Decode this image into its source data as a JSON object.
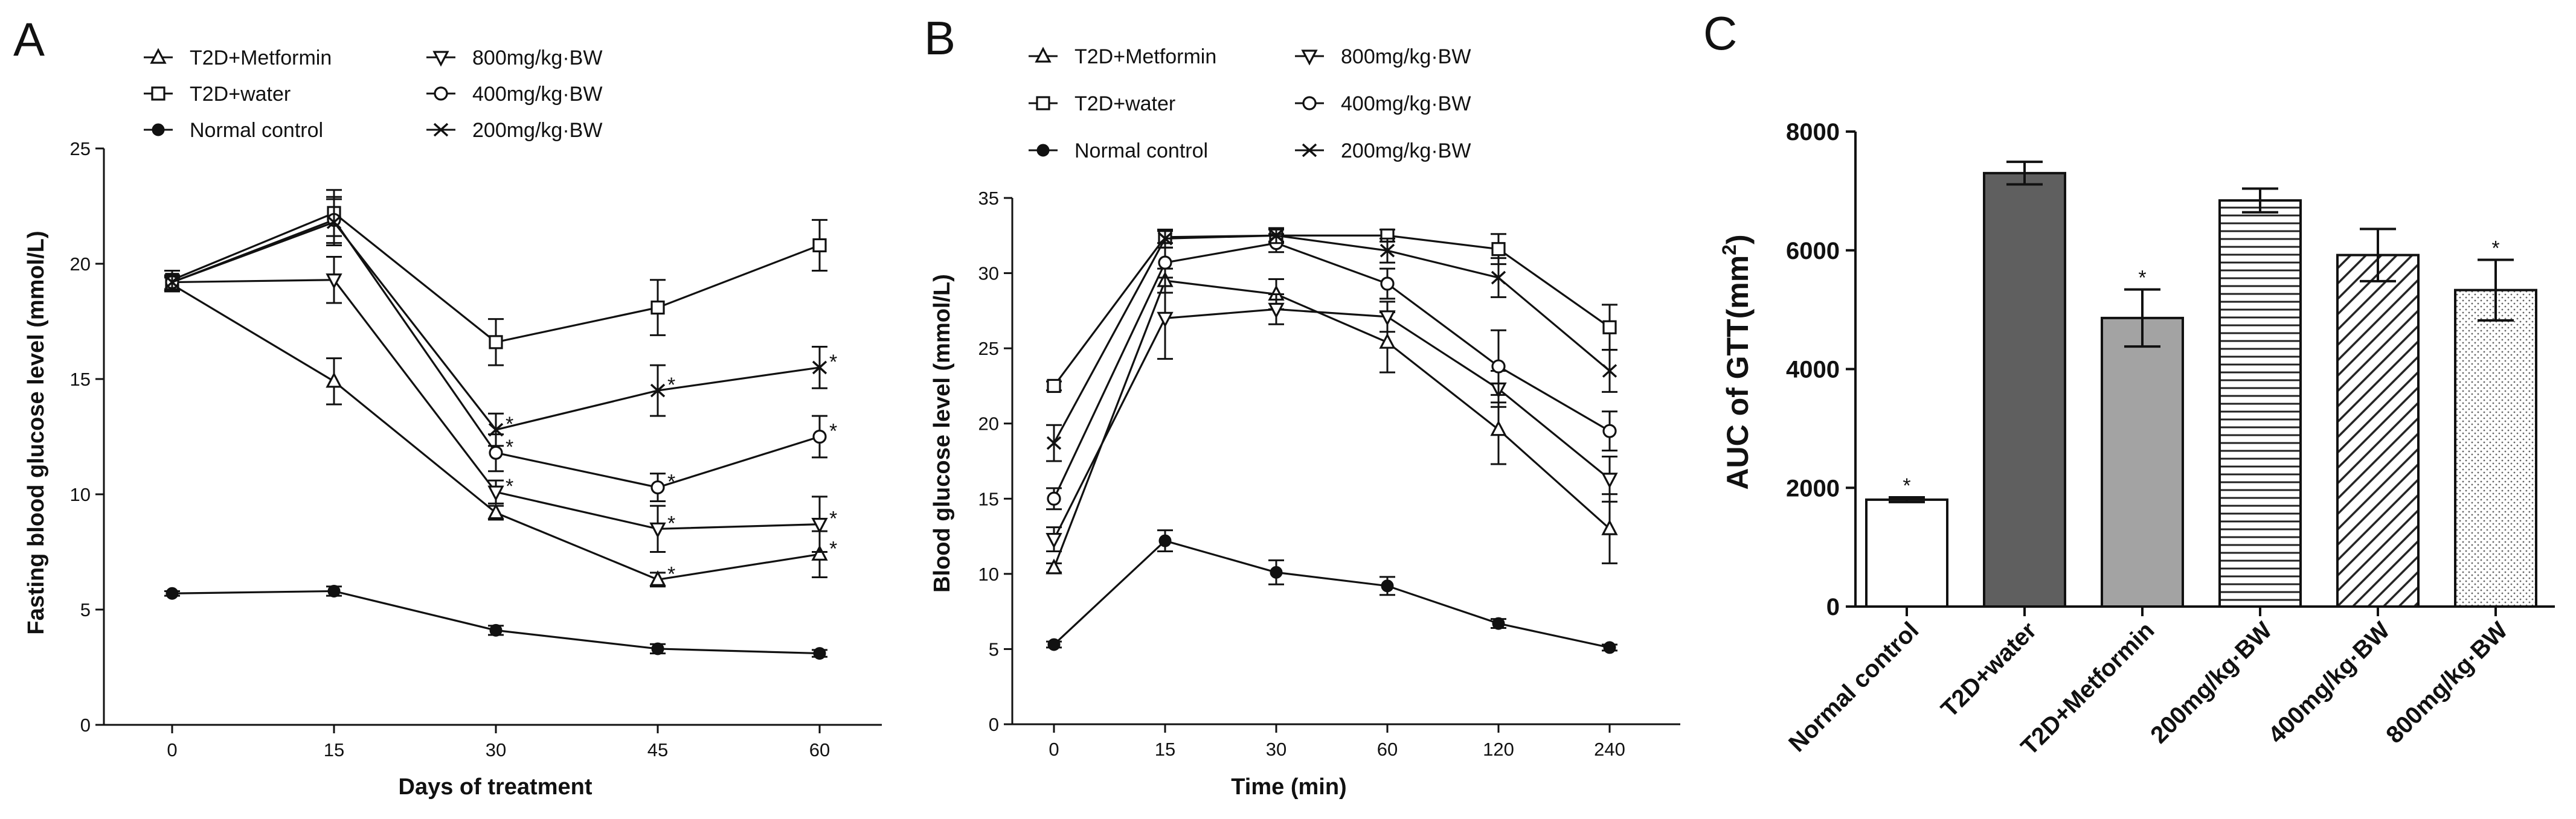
{
  "chart_data": [
    {
      "panel": "A",
      "type": "line",
      "xlabel": "Days of treatment",
      "ylabel": "Fasting blood glucose level (mmol/L)",
      "categories": [
        "0",
        "15",
        "30",
        "45",
        "60"
      ],
      "ylim": [
        0,
        25
      ],
      "yticks": [
        "0",
        "5",
        "10",
        "15",
        "20",
        "25"
      ],
      "legend": [
        {
          "name": "T2D+Metformin",
          "marker": "triangle-up"
        },
        {
          "name": "T2D+water",
          "marker": "square"
        },
        {
          "name": "Normal control",
          "marker": "filled-circle"
        },
        {
          "name": "800mg/kg·BW",
          "marker": "triangle-down"
        },
        {
          "name": "400mg/kg·BW",
          "marker": "circle"
        },
        {
          "name": "200mg/kg·BW",
          "marker": "cross"
        }
      ],
      "series": [
        {
          "name": "T2D+Metformin",
          "values": [
            19.1,
            14.9,
            9.2,
            6.3,
            7.4
          ],
          "errors": [
            0.3,
            1.0,
            0.3,
            0.3,
            1.0
          ],
          "stars": [
            false,
            false,
            false,
            true,
            true
          ]
        },
        {
          "name": "T2D+water",
          "values": [
            19.3,
            22.2,
            16.6,
            18.1,
            20.8
          ],
          "errors": [
            0.4,
            1.0,
            1.0,
            1.2,
            1.1
          ],
          "stars": [
            false,
            false,
            false,
            false,
            false
          ]
        },
        {
          "name": "Normal control",
          "values": [
            5.7,
            5.8,
            4.1,
            3.3,
            3.1
          ],
          "errors": [
            0.1,
            0.2,
            0.2,
            0.2,
            0.15
          ],
          "stars": [
            false,
            false,
            false,
            false,
            false
          ]
        },
        {
          "name": "800mg/kg·BW",
          "values": [
            19.2,
            19.3,
            10.1,
            8.5,
            8.7
          ],
          "errors": [
            0.3,
            1.0,
            0.5,
            1.0,
            1.2
          ],
          "stars": [
            false,
            false,
            true,
            true,
            true
          ]
        },
        {
          "name": "400mg/kg·BW",
          "values": [
            19.2,
            21.9,
            11.8,
            10.3,
            12.5
          ],
          "errors": [
            0.3,
            1.0,
            0.8,
            0.6,
            0.9
          ],
          "stars": [
            false,
            false,
            true,
            true,
            true
          ]
        },
        {
          "name": "200mg/kg·BW",
          "values": [
            19.2,
            21.8,
            12.8,
            14.5,
            15.5
          ],
          "errors": [
            0.3,
            1.0,
            0.7,
            1.1,
            0.9
          ],
          "stars": [
            false,
            false,
            true,
            true,
            true
          ]
        }
      ]
    },
    {
      "panel": "B",
      "type": "line",
      "xlabel": "Time (min)",
      "ylabel": "Blood glucose level (mmol/L)",
      "categories": [
        "0",
        "15",
        "30",
        "60",
        "120",
        "240"
      ],
      "ylim": [
        0,
        35
      ],
      "yticks": [
        "0",
        "5",
        "10",
        "15",
        "20",
        "25",
        "30",
        "35"
      ],
      "legend": [
        {
          "name": "T2D+Metformin",
          "marker": "triangle-up"
        },
        {
          "name": "T2D+water",
          "marker": "square"
        },
        {
          "name": "Normal control",
          "marker": "filled-circle"
        },
        {
          "name": "800mg/kg·BW",
          "marker": "triangle-down"
        },
        {
          "name": "400mg/kg·BW",
          "marker": "circle"
        },
        {
          "name": "200mg/kg·BW",
          "marker": "cross"
        }
      ],
      "series": [
        {
          "name": "T2D+Metformin",
          "values": [
            10.4,
            29.5,
            28.6,
            25.4,
            19.6,
            13.0
          ],
          "errors": [
            0.3,
            0.8,
            1.0,
            2.0,
            2.3,
            2.3
          ]
        },
        {
          "name": "T2D+water",
          "values": [
            22.5,
            32.4,
            32.5,
            32.5,
            31.6,
            26.4
          ],
          "errors": [
            0.3,
            0.4,
            0.4,
            0.4,
            1.0,
            1.5
          ]
        },
        {
          "name": "Normal control",
          "values": [
            5.3,
            12.2,
            10.1,
            9.2,
            6.7,
            5.1
          ],
          "errors": [
            0.2,
            0.7,
            0.8,
            0.6,
            0.3,
            0.2
          ]
        },
        {
          "name": "800mg/kg·BW",
          "values": [
            12.3,
            27.0,
            27.6,
            27.1,
            22.3,
            16.3
          ],
          "errors": [
            0.8,
            2.7,
            1.0,
            1.0,
            1.2,
            1.5
          ]
        },
        {
          "name": "400mg/kg·BW",
          "values": [
            15.0,
            30.7,
            32.0,
            29.3,
            23.8,
            19.5
          ],
          "errors": [
            0.7,
            1.0,
            0.6,
            1.0,
            2.4,
            1.3
          ]
        },
        {
          "name": "200mg/kg·BW",
          "values": [
            18.7,
            32.3,
            32.5,
            31.5,
            29.7,
            23.5
          ],
          "errors": [
            1.2,
            0.6,
            0.5,
            0.8,
            1.3,
            1.4
          ]
        }
      ]
    },
    {
      "panel": "C",
      "type": "bar",
      "ylabel_main": "AUC of GTT(mm",
      "ylabel_sup": "2",
      "ylabel_close": ")",
      "categories": [
        "Normal control",
        "T2D+water",
        "T2D+Metformin",
        "200mg/kg·BW",
        "400mg/kg·BW",
        "800mg/kg·BW"
      ],
      "values": [
        1800,
        7300,
        4860,
        6840,
        5920,
        5330
      ],
      "errors": [
        40,
        190,
        480,
        200,
        440,
        510
      ],
      "stars": [
        true,
        false,
        true,
        false,
        false,
        true
      ],
      "fills": [
        "none",
        "#5f5f5f",
        "#a3a3a3",
        "hlines",
        "diag",
        "dots"
      ],
      "ylim": [
        0,
        8000
      ],
      "yticks": [
        "0",
        "2000",
        "4000",
        "6000",
        "8000"
      ]
    }
  ],
  "labels": {
    "panel_a": "A",
    "panel_b": "B",
    "panel_c": "C",
    "star": "*"
  }
}
